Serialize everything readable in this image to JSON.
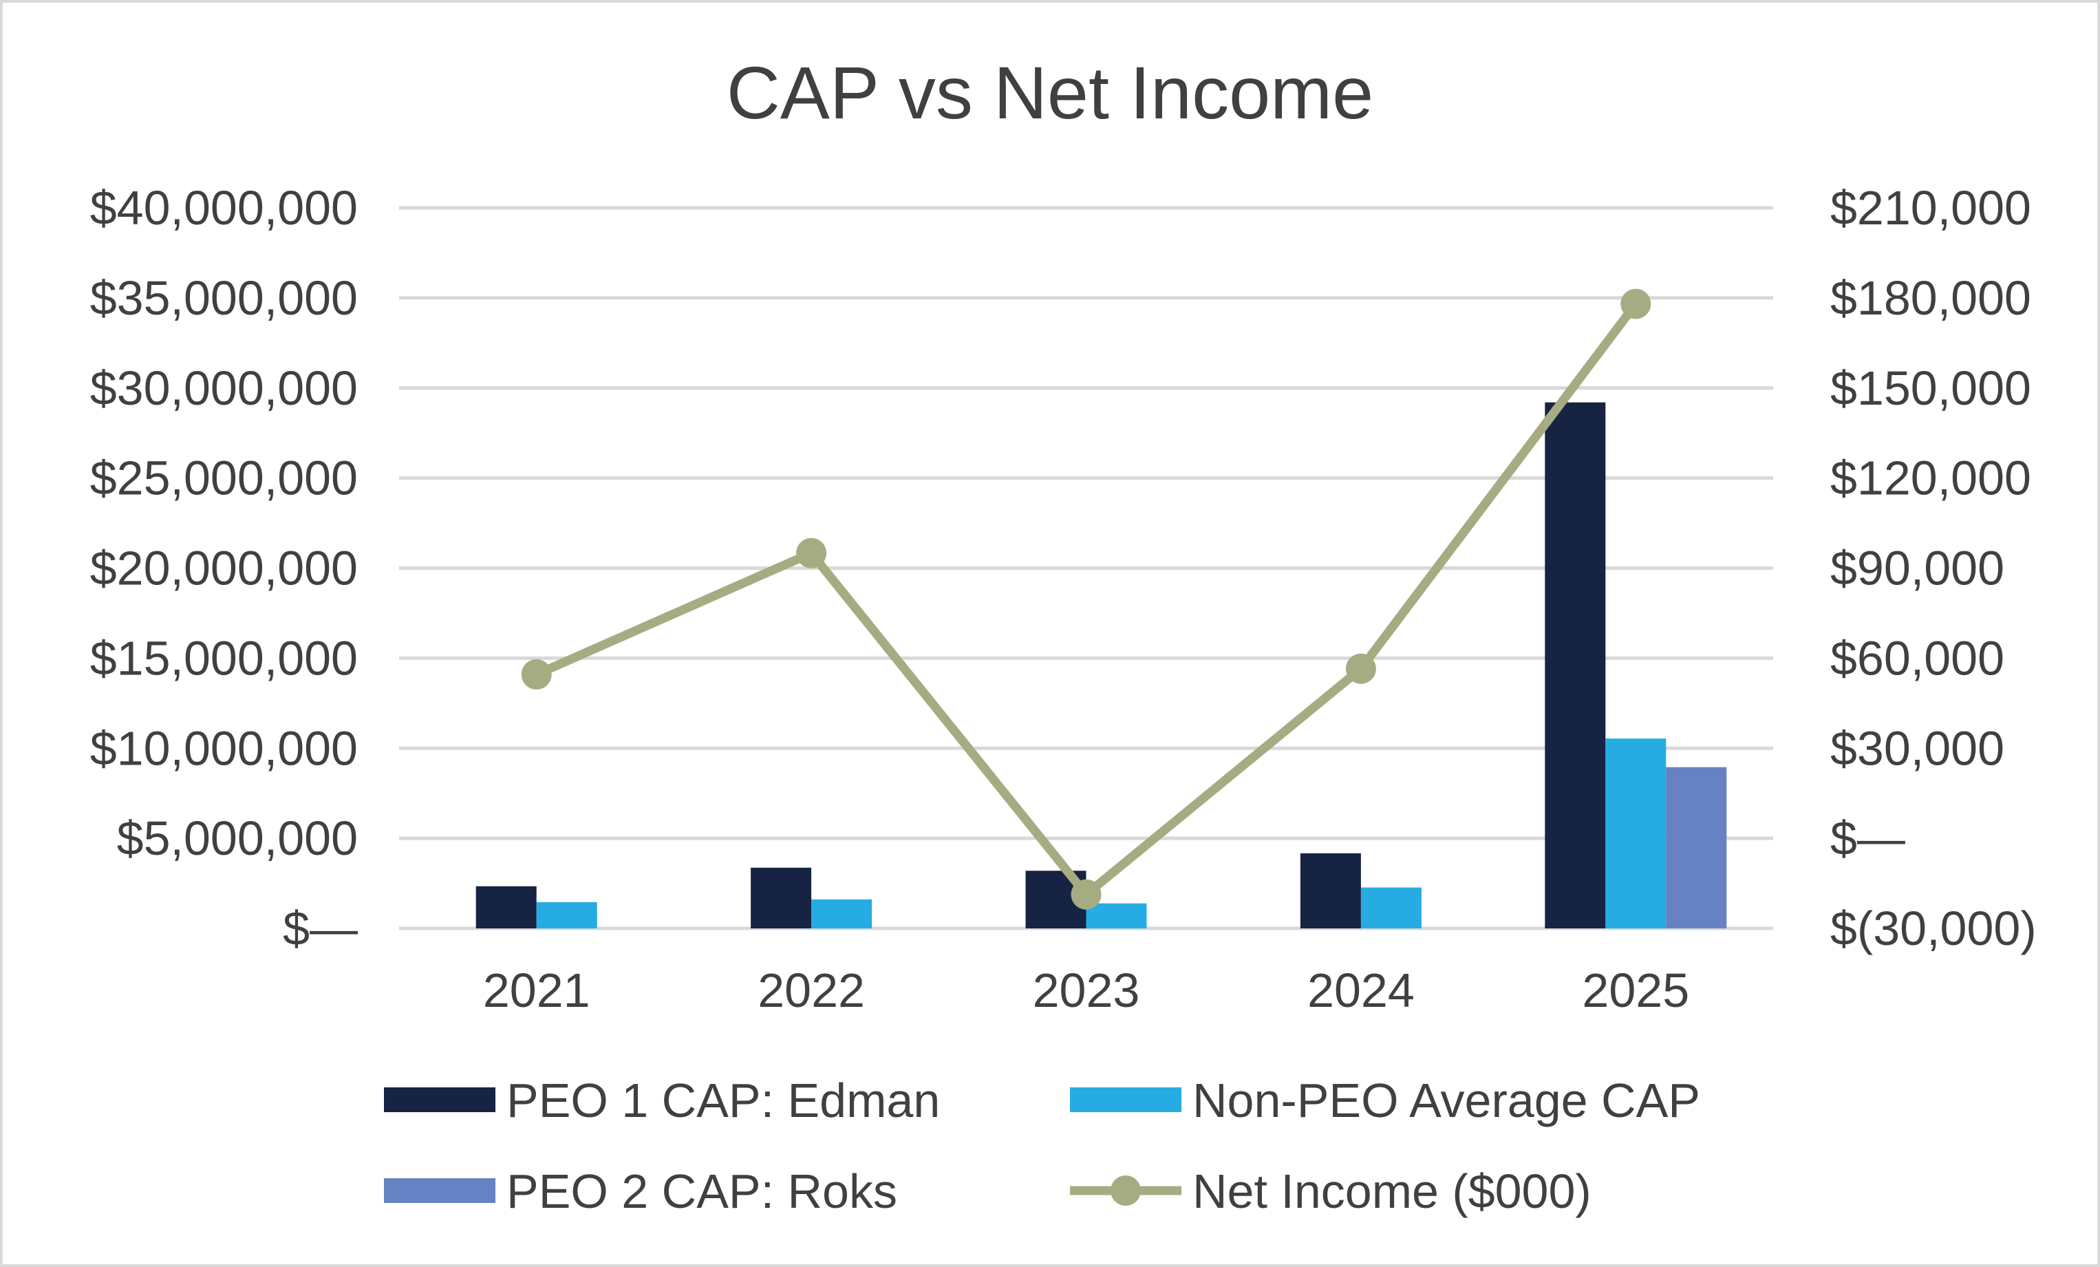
{
  "chart_data": {
    "type": "bar+line",
    "title": "CAP vs Net Income",
    "categories": [
      "2021",
      "2022",
      "2023",
      "2024",
      "2025"
    ],
    "left_axis": {
      "ylim": [
        0,
        40000000
      ],
      "ticks": [
        0,
        5000000,
        10000000,
        15000000,
        20000000,
        25000000,
        30000000,
        35000000,
        40000000
      ],
      "tick_labels": [
        "$—",
        "$5,000,000",
        "$10,000,000",
        "$15,000,000",
        "$20,000,000",
        "$25,000,000",
        "$30,000,000",
        "$35,000,000",
        "$40,000,000"
      ]
    },
    "right_axis": {
      "ylim": [
        -30000,
        210000
      ],
      "ticks": [
        -30000,
        0,
        30000,
        60000,
        90000,
        120000,
        150000,
        180000,
        210000
      ],
      "tick_labels": [
        "$(30,000)",
        "$—",
        "$30,000",
        "$60,000",
        "$90,000",
        "$120,000",
        "$150,000",
        "$180,000",
        "$210,000"
      ]
    },
    "series": [
      {
        "name": "PEO 1 CAP: Edman",
        "type": "bar",
        "axis": "left",
        "color": "#162343",
        "values": [
          2340000,
          3370000,
          3200000,
          4170000,
          29200000
        ]
      },
      {
        "name": "Non-PEO Average CAP",
        "type": "bar",
        "axis": "left",
        "color": "#26ACE2",
        "values": [
          1460000,
          1610000,
          1390000,
          2270000,
          10540000
        ]
      },
      {
        "name": "PEO 2 CAP: Roks",
        "type": "bar",
        "axis": "left",
        "color": "#6682C2",
        "values": [
          null,
          null,
          null,
          null,
          8950000
        ]
      },
      {
        "name": "Net Income ($000)",
        "type": "line",
        "axis": "right",
        "color": "#A5AC81",
        "values": [
          54600,
          95000,
          -18700,
          56500,
          178000
        ]
      }
    ],
    "grid": true,
    "legend_position": "bottom"
  }
}
